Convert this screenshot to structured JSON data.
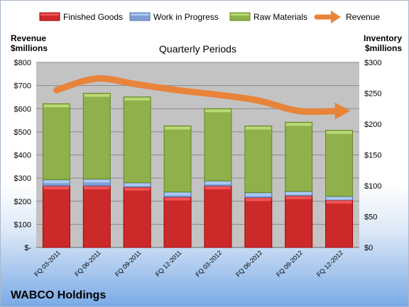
{
  "chart_data": {
    "type": "bar",
    "title": "Quarterly Periods",
    "company": "WABCO Holdings",
    "left_axis_label": [
      "Revenue",
      "$millions"
    ],
    "right_axis_label": [
      "Inventory",
      "$millions"
    ],
    "categories": [
      "FQ 03-2011",
      "FQ 06-2011",
      "FQ 09-2011",
      "FQ 12-2011",
      "FQ 03-2012",
      "FQ 06-2012",
      "FQ 09-2012",
      "FQ 12-2012"
    ],
    "left_axis": {
      "min": 0,
      "max": 800,
      "step": 100,
      "tick_labels": [
        "$-",
        "$100",
        "$200",
        "$300",
        "$400",
        "$500",
        "$600",
        "$700",
        "$800"
      ]
    },
    "right_axis": {
      "min": 0,
      "max": 300,
      "step": 50,
      "tick_labels": [
        "$0",
        "$50",
        "$100",
        "$150",
        "$200",
        "$250",
        "$300"
      ]
    },
    "grid": true,
    "legend_position": "top",
    "inventory_series": [
      {
        "name": "Finished Goods",
        "color": "#cc2a2a",
        "values": [
          100,
          100,
          98,
          82,
          100,
          81,
          84,
          77
        ]
      },
      {
        "name": "Work in Progress",
        "color": "#7f9fd6",
        "values": [
          10,
          11,
          7,
          8,
          8,
          8,
          7,
          6
        ]
      },
      {
        "name": "Raw Materials",
        "color": "#8fb04a",
        "values": [
          123,
          139,
          139,
          107,
          117,
          108,
          112,
          107
        ]
      }
    ],
    "revenue_series": {
      "name": "Revenue",
      "color": "#e8833a",
      "values": [
        680,
        730,
        705,
        680,
        660,
        635,
        590,
        590
      ]
    }
  }
}
